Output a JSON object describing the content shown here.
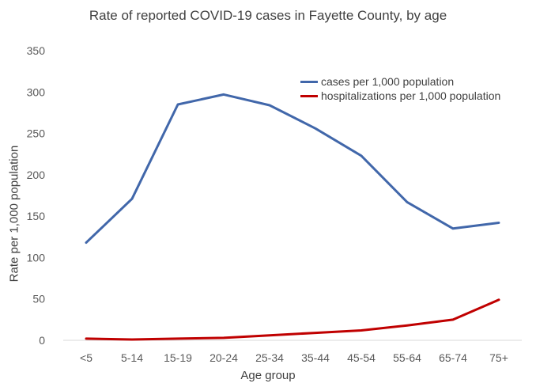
{
  "chart_data": {
    "type": "line",
    "title": "Rate of reported COVID-19 cases in Fayette County, by age",
    "xlabel": "Age group",
    "ylabel": "Rate per 1,000 population",
    "categories": [
      "<5",
      "5-14",
      "15-19",
      "20-24",
      "25-34",
      "35-44",
      "45-54",
      "55-64",
      "65-74",
      "75+"
    ],
    "ylim": [
      0,
      350
    ],
    "yticks": [
      "0",
      "50",
      "100",
      "150",
      "200",
      "250",
      "300",
      "350"
    ],
    "grid": false,
    "legend_position": "top-right",
    "series": [
      {
        "name": "cases per 1,000 population",
        "color": "#4167AA",
        "values": [
          118,
          171,
          285,
          297,
          284,
          256,
          223,
          167,
          135,
          142
        ]
      },
      {
        "name": "hospitalizations per 1,000 population",
        "color": "#C00000",
        "values": [
          2,
          1,
          2,
          3,
          6,
          9,
          12,
          18,
          25,
          49
        ]
      }
    ]
  }
}
